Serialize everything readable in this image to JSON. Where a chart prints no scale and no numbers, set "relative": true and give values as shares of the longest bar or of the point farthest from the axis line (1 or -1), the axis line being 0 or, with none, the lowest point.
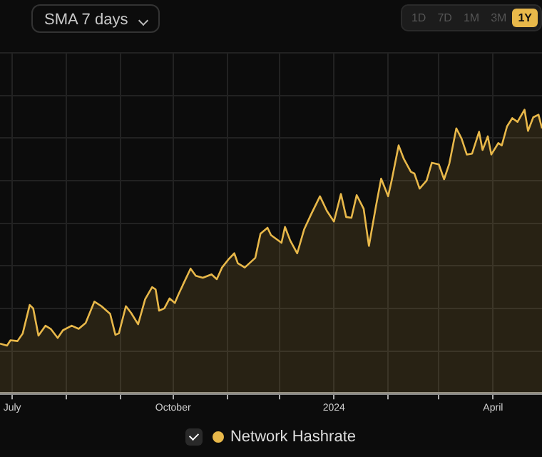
{
  "chart_data": {
    "type": "area",
    "relative": true,
    "annotations": [
      "SMA 7 days",
      "1D",
      "7D",
      "1M",
      "3M",
      "1Y"
    ],
    "xlim": [
      "2023-06-24",
      "2024-04-29"
    ],
    "xticks": [
      {
        "value": "2023-07-01",
        "label": "July"
      },
      {
        "value": "2023-08-01",
        "label": null
      },
      {
        "value": "2023-09-01",
        "label": null
      },
      {
        "value": "2023-10-01",
        "label": "October"
      },
      {
        "value": "2023-11-01",
        "label": null
      },
      {
        "value": "2023-12-01",
        "label": null
      },
      {
        "value": "2024-01-01",
        "label": "2024"
      },
      {
        "value": "2024-02-01",
        "label": null
      },
      {
        "value": "2024-03-01",
        "label": null
      },
      {
        "value": "2024-04-01",
        "label": "April"
      }
    ],
    "grid": true,
    "legend": "bottom",
    "marker": "none",
    "line_style": "solid",
    "series": [
      {
        "name": "Network Hashrate",
        "color": "#e8b84a",
        "x": [
          "2023-06-24",
          "2023-06-28",
          "2023-06-30",
          "2023-07-04",
          "2023-07-07",
          "2023-07-11",
          "2023-07-13",
          "2023-07-16",
          "2023-07-20",
          "2023-07-23",
          "2023-07-27",
          "2023-07-30",
          "2023-08-04",
          "2023-08-08",
          "2023-08-12",
          "2023-08-17",
          "2023-08-21",
          "2023-08-26",
          "2023-08-29",
          "2023-08-31",
          "2023-09-04",
          "2023-09-07",
          "2023-09-11",
          "2023-09-15",
          "2023-09-19",
          "2023-09-21",
          "2023-09-23",
          "2023-09-26",
          "2023-09-29",
          "2023-10-02",
          "2023-10-04",
          "2023-10-07",
          "2023-10-11",
          "2023-10-14",
          "2023-10-18",
          "2023-10-23",
          "2023-10-26",
          "2023-10-29",
          "2023-11-02",
          "2023-11-05",
          "2023-11-07",
          "2023-11-11",
          "2023-11-17",
          "2023-11-20",
          "2023-11-24",
          "2023-11-26",
          "2023-12-02",
          "2023-12-04",
          "2023-12-07",
          "2023-12-11",
          "2023-12-15",
          "2023-12-19",
          "2023-12-24",
          "2023-12-28",
          "2024-01-01",
          "2024-01-05",
          "2024-01-08",
          "2024-01-11",
          "2024-01-14",
          "2024-01-18",
          "2024-01-21",
          "2024-01-25",
          "2024-01-28",
          "2024-02-01",
          "2024-02-03",
          "2024-02-07",
          "2024-02-10",
          "2024-02-14",
          "2024-02-16",
          "2024-02-19",
          "2024-02-23",
          "2024-02-26",
          "2024-03-01",
          "2024-03-04",
          "2024-03-07",
          "2024-03-11",
          "2024-03-14",
          "2024-03-17",
          "2024-03-20",
          "2024-03-24",
          "2024-03-26",
          "2024-03-29",
          "2024-03-31",
          "2024-04-04",
          "2024-04-06",
          "2024-04-09",
          "2024-04-12",
          "2024-04-15",
          "2024-04-19",
          "2024-04-21",
          "2024-04-24",
          "2024-04-27",
          "2024-04-29"
        ],
        "values": [
          0.176,
          0.169,
          0.188,
          0.185,
          0.212,
          0.312,
          0.3,
          0.204,
          0.239,
          0.228,
          0.196,
          0.223,
          0.239,
          0.228,
          0.249,
          0.324,
          0.308,
          0.281,
          0.207,
          0.212,
          0.308,
          0.284,
          0.244,
          0.332,
          0.375,
          0.367,
          0.292,
          0.3,
          0.335,
          0.319,
          0.348,
          0.388,
          0.44,
          0.415,
          0.408,
          0.42,
          0.403,
          0.444,
          0.475,
          0.494,
          0.459,
          0.444,
          0.478,
          0.563,
          0.584,
          0.558,
          0.531,
          0.587,
          0.539,
          0.494,
          0.579,
          0.632,
          0.695,
          0.643,
          0.606,
          0.703,
          0.622,
          0.619,
          0.699,
          0.651,
          0.52,
          0.659,
          0.757,
          0.695,
          0.75,
          0.874,
          0.826,
          0.781,
          0.775,
          0.722,
          0.75,
          0.813,
          0.807,
          0.755,
          0.81,
          0.934,
          0.898,
          0.842,
          0.845,
          0.922,
          0.858,
          0.906,
          0.842,
          0.882,
          0.874,
          0.941,
          0.97,
          0.957,
          1,
          0.925,
          0.973,
          0.982,
          0.934
        ]
      }
    ]
  }
}
